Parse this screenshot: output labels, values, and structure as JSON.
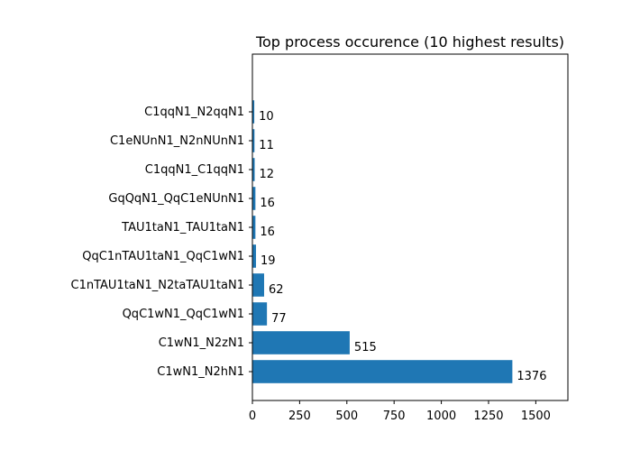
{
  "chart_data": {
    "type": "bar",
    "orientation": "horizontal",
    "title": "Top process occurence (10 highest results)",
    "xlabel": "",
    "ylabel": "",
    "categories": [
      "C1wN1_N2hN1",
      "C1wN1_N2zN1",
      "QqC1wN1_QqC1wN1",
      "C1nTAU1taN1_N2taTAU1taN1",
      "QqC1nTAU1taN1_QqC1wN1",
      "TAU1taN1_TAU1taN1",
      "GqQqN1_QqC1eNUnN1",
      "C1qqN1_C1qqN1",
      "C1eNUnN1_N2nNUnN1",
      "C1qqN1_N2qqN1"
    ],
    "values": [
      1376,
      515,
      77,
      62,
      19,
      16,
      16,
      12,
      11,
      10
    ],
    "data_labels": [
      "1376",
      "515",
      "77",
      "62",
      "19",
      "16",
      "16",
      "12",
      "11",
      "10"
    ],
    "xlim": [
      0,
      1670
    ],
    "xticks": [
      0,
      250,
      500,
      750,
      1000,
      1250,
      1500
    ],
    "grid": false,
    "bar_color": "#1f77b4"
  }
}
